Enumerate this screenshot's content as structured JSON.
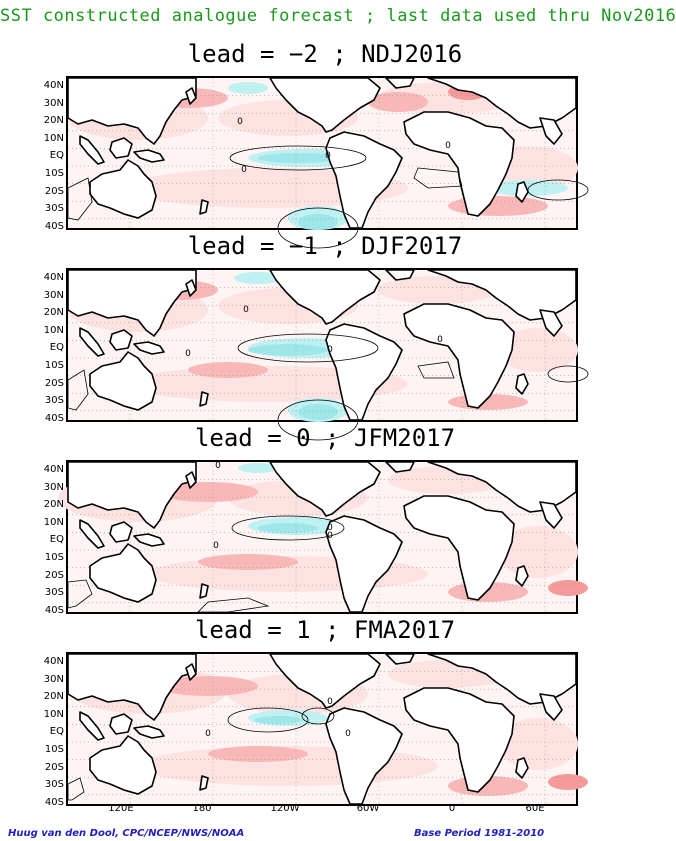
{
  "title": "SST constructed analogue forecast ; last data used thru Nov2016",
  "panels": [
    {
      "title": "lead = −2 ; NDJ2016",
      "lead": -2,
      "season": "NDJ2016",
      "equatorial_pacific": "cool"
    },
    {
      "title": "lead = −1 ; DJF2017",
      "lead": -1,
      "season": "DJF2017",
      "equatorial_pacific": "cool"
    },
    {
      "title": "lead = 0 ; JFM2017",
      "lead": 0,
      "season": "JFM2017",
      "equatorial_pacific": "weak cool"
    },
    {
      "title": "lead = 1 ; FMA2017",
      "lead": 1,
      "season": "FMA2017",
      "equatorial_pacific": "near neutral"
    }
  ],
  "lat_labels": [
    "40N",
    "30N",
    "20N",
    "10N",
    "EQ",
    "10S",
    "20S",
    "30S",
    "40S"
  ],
  "lon_labels": [
    "120E",
    "180",
    "120W",
    "60W",
    "0",
    "60E"
  ],
  "contour_label": "0",
  "colors": {
    "warm_light": "#fde2e2",
    "warm": "#f8b8b8",
    "warm_strong": "#f49a9a",
    "cool": "#bff0f2",
    "cool_strong": "#9fe6ea",
    "title": "#1a9a1a",
    "footer": "#2020c0"
  },
  "footer_left": "Huug van den Dool, CPC/NCEP/NWS/NOAA",
  "footer_right": "Base Period 1981-2010"
}
